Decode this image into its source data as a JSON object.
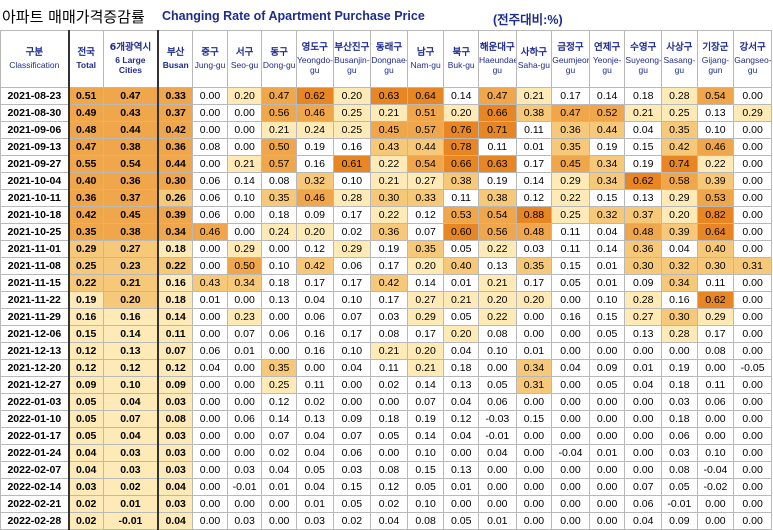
{
  "title": {
    "ko": "아파트 매매가격증감률",
    "en": "Changing Rate of Apartment Purchase Price",
    "unit": "(전주대비:%)"
  },
  "headers": [
    {
      "ko": "구분",
      "en": "Classification"
    },
    {
      "ko": "전국",
      "en": "Total"
    },
    {
      "ko": "6개광역시",
      "en": "6 Large Cities"
    },
    {
      "ko": "부산",
      "en": "Busan"
    },
    {
      "ko": "중구",
      "en": "Jung-gu"
    },
    {
      "ko": "서구",
      "en": "Seo-gu"
    },
    {
      "ko": "동구",
      "en": "Dong-gu"
    },
    {
      "ko": "영도구",
      "en": "Yeongdo-gu"
    },
    {
      "ko": "부산진구",
      "en": "Busanjin-gu"
    },
    {
      "ko": "동래구",
      "en": "Dongnae-gu"
    },
    {
      "ko": "남구",
      "en": "Nam-gu"
    },
    {
      "ko": "북구",
      "en": "Buk-gu"
    },
    {
      "ko": "해운대구",
      "en": "Haeundae-gu"
    },
    {
      "ko": "사하구",
      "en": "Saha-gu"
    },
    {
      "ko": "금정구",
      "en": "Geumjeong-gu"
    },
    {
      "ko": "연제구",
      "en": "Yeonje-gu"
    },
    {
      "ko": "수영구",
      "en": "Suyeong-gu"
    },
    {
      "ko": "사상구",
      "en": "Sasang-gu"
    },
    {
      "ko": "기장군",
      "en": "Gijang-gun"
    },
    {
      "ko": "강서구",
      "en": "Gangseo-gu"
    }
  ],
  "rows": [
    {
      "date": "2021-08-23",
      "v": [
        "0.51",
        "0.47",
        "0.33",
        "0.00",
        "0.20",
        "0.47",
        "0.62",
        "0.20",
        "0.63",
        "0.64",
        "0.14",
        "0.47",
        "0.21",
        "0.17",
        "0.14",
        "0.18",
        "0.28",
        "0.54",
        "0.00"
      ]
    },
    {
      "date": "2021-08-30",
      "v": [
        "0.49",
        "0.43",
        "0.37",
        "0.00",
        "0.00",
        "0.56",
        "0.46",
        "0.25",
        "0.21",
        "0.51",
        "0.20",
        "0.66",
        "0.38",
        "0.47",
        "0.52",
        "0.21",
        "0.25",
        "0.13",
        "0.29"
      ]
    },
    {
      "date": "2021-09-06",
      "v": [
        "0.48",
        "0.44",
        "0.42",
        "0.00",
        "0.00",
        "0.21",
        "0.24",
        "0.25",
        "0.45",
        "0.57",
        "0.76",
        "0.71",
        "0.11",
        "0.36",
        "0.44",
        "0.04",
        "0.35",
        "0.10",
        "0.00"
      ]
    },
    {
      "date": "2021-09-13",
      "v": [
        "0.47",
        "0.38",
        "0.36",
        "0.08",
        "0.00",
        "0.50",
        "0.19",
        "0.16",
        "0.43",
        "0.44",
        "0.78",
        "0.11",
        "0.01",
        "0.35",
        "0.19",
        "0.15",
        "0.42",
        "0.46",
        "0.00"
      ]
    },
    {
      "date": "2021-09-27",
      "v": [
        "0.55",
        "0.54",
        "0.44",
        "0.00",
        "0.21",
        "0.57",
        "0.16",
        "0.61",
        "0.22",
        "0.54",
        "0.66",
        "0.63",
        "0.17",
        "0.45",
        "0.34",
        "0.19",
        "0.74",
        "0.22",
        "0.00"
      ]
    },
    {
      "date": "2021-10-04",
      "v": [
        "0.40",
        "0.36",
        "0.30",
        "0.06",
        "0.14",
        "0.08",
        "0.32",
        "0.10",
        "0.21",
        "0.27",
        "0.38",
        "0.19",
        "0.14",
        "0.29",
        "0.34",
        "0.62",
        "0.58",
        "0.39",
        "0.00"
      ]
    },
    {
      "date": "2021-10-11",
      "v": [
        "0.36",
        "0.37",
        "0.26",
        "0.06",
        "0.10",
        "0.35",
        "0.46",
        "0.28",
        "0.30",
        "0.33",
        "0.11",
        "0.38",
        "0.12",
        "0.22",
        "0.15",
        "0.13",
        "0.29",
        "0.53",
        "0.00"
      ]
    },
    {
      "date": "2021-10-18",
      "v": [
        "0.42",
        "0.45",
        "0.39",
        "0.06",
        "0.00",
        "0.18",
        "0.09",
        "0.17",
        "0.22",
        "0.12",
        "0.53",
        "0.54",
        "0.88",
        "0.25",
        "0.32",
        "0.37",
        "0.20",
        "0.82",
        "0.00"
      ]
    },
    {
      "date": "2021-10-25",
      "v": [
        "0.35",
        "0.38",
        "0.34",
        "0.46",
        "0.00",
        "0.24",
        "0.20",
        "0.02",
        "0.36",
        "0.07",
        "0.60",
        "0.56",
        "0.48",
        "0.11",
        "0.04",
        "0.48",
        "0.39",
        "0.64",
        "0.00"
      ]
    },
    {
      "date": "2021-11-01",
      "v": [
        "0.29",
        "0.27",
        "0.18",
        "0.00",
        "0.29",
        "0.00",
        "0.12",
        "0.29",
        "0.19",
        "0.35",
        "0.05",
        "0.22",
        "0.03",
        "0.11",
        "0.14",
        "0.36",
        "0.04",
        "0.40",
        "0.00"
      ]
    },
    {
      "date": "2021-11-08",
      "v": [
        "0.25",
        "0.23",
        "0.22",
        "0.00",
        "0.50",
        "0.10",
        "0.42",
        "0.06",
        "0.17",
        "0.20",
        "0.40",
        "0.13",
        "0.35",
        "0.15",
        "0.01",
        "0.30",
        "0.32",
        "0.30",
        "0.31"
      ]
    },
    {
      "date": "2021-11-15",
      "v": [
        "0.22",
        "0.21",
        "0.16",
        "0.43",
        "0.34",
        "0.18",
        "0.17",
        "0.17",
        "0.42",
        "0.14",
        "0.01",
        "0.21",
        "0.17",
        "0.05",
        "0.01",
        "0.09",
        "0.34",
        "0.11",
        "0.00"
      ]
    },
    {
      "date": "2021-11-22",
      "v": [
        "0.19",
        "0.20",
        "0.18",
        "0.01",
        "0.00",
        "0.13",
        "0.04",
        "0.10",
        "0.17",
        "0.27",
        "0.21",
        "0.20",
        "0.20",
        "0.00",
        "0.10",
        "0.28",
        "0.16",
        "0.62",
        "0.00"
      ]
    },
    {
      "date": "2021-11-29",
      "v": [
        "0.16",
        "0.16",
        "0.14",
        "0.00",
        "0.23",
        "0.00",
        "0.06",
        "0.07",
        "0.03",
        "0.29",
        "0.05",
        "0.22",
        "0.00",
        "0.16",
        "0.15",
        "0.27",
        "0.30",
        "0.29",
        "0.00"
      ]
    },
    {
      "date": "2021-12-06",
      "v": [
        "0.15",
        "0.14",
        "0.11",
        "0.00",
        "0.07",
        "0.06",
        "0.16",
        "0.17",
        "0.08",
        "0.17",
        "0.20",
        "0.08",
        "0.00",
        "0.00",
        "0.05",
        "0.13",
        "0.28",
        "0.17",
        "0.00"
      ]
    },
    {
      "date": "2021-12-13",
      "v": [
        "0.12",
        "0.13",
        "0.07",
        "0.06",
        "0.01",
        "0.00",
        "0.16",
        "0.10",
        "0.21",
        "0.20",
        "0.04",
        "0.10",
        "0.01",
        "0.00",
        "0.00",
        "0.00",
        "0.00",
        "0.08",
        "0.00"
      ]
    },
    {
      "date": "2021-12-20",
      "v": [
        "0.12",
        "0.12",
        "0.12",
        "0.04",
        "0.00",
        "0.35",
        "0.00",
        "0.04",
        "0.11",
        "0.21",
        "0.18",
        "0.00",
        "0.34",
        "0.04",
        "0.09",
        "0.01",
        "0.19",
        "0.00",
        "-0.05"
      ]
    },
    {
      "date": "2021-12-27",
      "v": [
        "0.09",
        "0.10",
        "0.09",
        "0.00",
        "0.00",
        "0.25",
        "0.11",
        "0.00",
        "0.02",
        "0.14",
        "0.13",
        "0.05",
        "0.31",
        "0.00",
        "0.05",
        "0.04",
        "0.18",
        "0.11",
        "0.00"
      ]
    },
    {
      "date": "2022-01-03",
      "v": [
        "0.05",
        "0.04",
        "0.03",
        "0.00",
        "0.00",
        "0.12",
        "0.02",
        "0.00",
        "0.00",
        "0.07",
        "0.04",
        "0.06",
        "0.00",
        "0.00",
        "0.00",
        "0.00",
        "0.03",
        "0.06",
        "0.00"
      ]
    },
    {
      "date": "2022-01-10",
      "v": [
        "0.05",
        "0.07",
        "0.08",
        "0.00",
        "0.06",
        "0.14",
        "0.13",
        "0.09",
        "0.18",
        "0.19",
        "0.12",
        "-0.03",
        "0.15",
        "0.00",
        "0.00",
        "0.00",
        "0.18",
        "0.00",
        "0.00"
      ]
    },
    {
      "date": "2022-01-17",
      "v": [
        "0.05",
        "0.04",
        "0.03",
        "0.00",
        "0.00",
        "0.07",
        "0.04",
        "0.07",
        "0.05",
        "0.14",
        "0.04",
        "-0.01",
        "0.00",
        "0.00",
        "0.00",
        "0.00",
        "0.06",
        "0.00",
        "0.00"
      ]
    },
    {
      "date": "2022-01-24",
      "v": [
        "0.04",
        "0.03",
        "0.03",
        "0.00",
        "0.00",
        "0.02",
        "0.04",
        "0.06",
        "0.00",
        "0.10",
        "0.00",
        "0.04",
        "0.00",
        "-0.04",
        "0.01",
        "0.00",
        "0.03",
        "0.10",
        "0.00"
      ]
    },
    {
      "date": "2022-02-07",
      "v": [
        "0.04",
        "0.03",
        "0.03",
        "0.00",
        "0.03",
        "0.04",
        "0.05",
        "0.03",
        "0.08",
        "0.15",
        "0.13",
        "0.00",
        "0.00",
        "0.00",
        "0.00",
        "0.00",
        "0.08",
        "-0.04",
        "0.00"
      ]
    },
    {
      "date": "2022-02-14",
      "v": [
        "0.03",
        "0.02",
        "0.04",
        "0.00",
        "-0.01",
        "0.01",
        "0.04",
        "0.15",
        "0.12",
        "0.05",
        "0.01",
        "0.00",
        "0.00",
        "0.00",
        "0.00",
        "0.07",
        "0.05",
        "-0.02",
        "0.00"
      ]
    },
    {
      "date": "2022-02-21",
      "v": [
        "0.02",
        "0.01",
        "0.03",
        "0.00",
        "0.00",
        "0.00",
        "0.01",
        "0.05",
        "0.02",
        "0.10",
        "0.00",
        "0.00",
        "0.00",
        "0.00",
        "0.00",
        "0.06",
        "-0.01",
        "0.00",
        "0.00"
      ]
    },
    {
      "date": "2022-02-28",
      "v": [
        "0.02",
        "-0.01",
        "0.04",
        "0.00",
        "0.03",
        "0.00",
        "0.03",
        "0.02",
        "0.04",
        "0.08",
        "0.05",
        "0.01",
        "0.00",
        "0.00",
        "0.00",
        "0.04",
        "0.09",
        "0.00",
        "0.00"
      ]
    }
  ],
  "colors": {
    "title_en": "#1f2c8f",
    "highlight_1": "#fdeab7",
    "highlight_2": "#f6c97a",
    "highlight_3": "#f0a64a",
    "highlight_4": "#e78622"
  }
}
